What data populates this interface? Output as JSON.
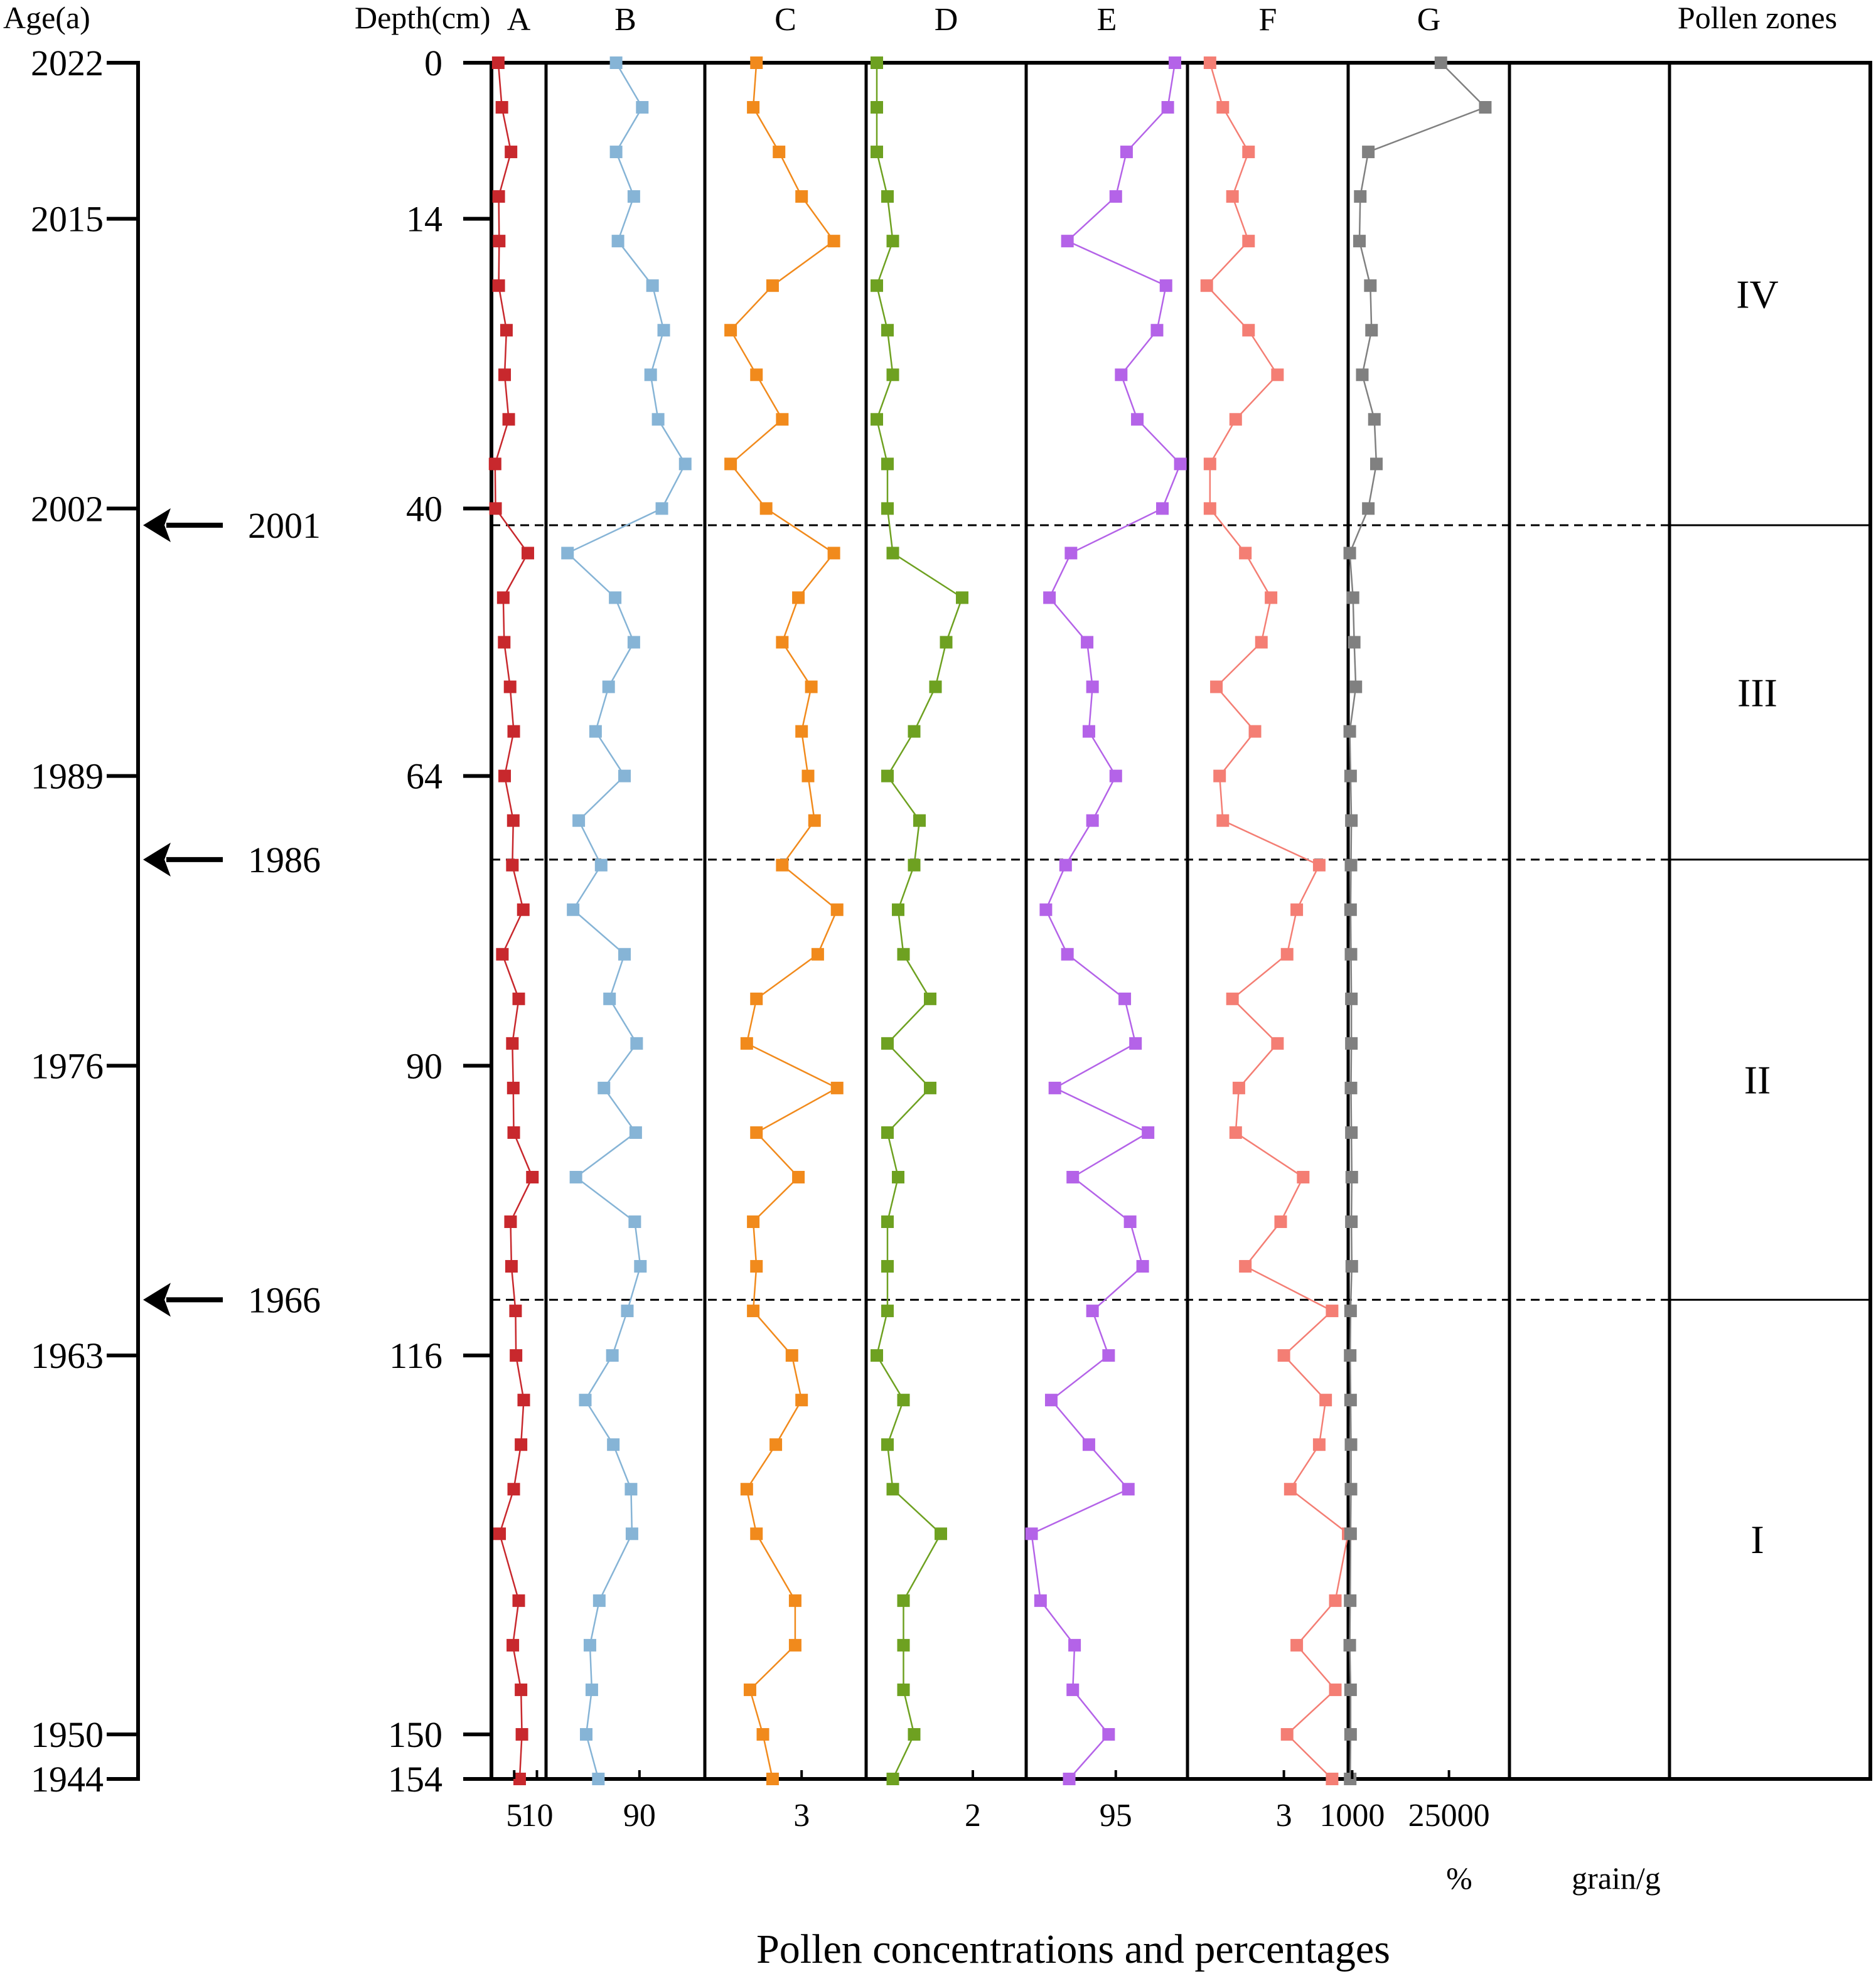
{
  "chart_data": {
    "type": "line",
    "title": "",
    "xlabel": "Pollen concentrations and percentages",
    "ylabel": "Depth(cm)",
    "age_axis_label": "Age(a)",
    "zones_label": "Pollen zones",
    "unit_percent": "%",
    "unit_conc": "grain/g",
    "ylim": [
      0,
      154
    ],
    "depth_ticks": [
      {
        "depth": 0,
        "label": "0"
      },
      {
        "depth": 14,
        "label": "14"
      },
      {
        "depth": 40,
        "label": "40"
      },
      {
        "depth": 64,
        "label": "64"
      },
      {
        "depth": 90,
        "label": "90"
      },
      {
        "depth": 116,
        "label": "116"
      },
      {
        "depth": 150,
        "label": "150"
      },
      {
        "depth": 154,
        "label": "154"
      }
    ],
    "age_ticks": [
      {
        "depth": 0,
        "label": "2022"
      },
      {
        "depth": 14,
        "label": "2015"
      },
      {
        "depth": 40,
        "label": "2002"
      },
      {
        "depth": 64,
        "label": "1989"
      },
      {
        "depth": 90,
        "label": "1976"
      },
      {
        "depth": 116,
        "label": "1963"
      },
      {
        "depth": 150,
        "label": "1950"
      },
      {
        "depth": 154,
        "label": "1944"
      }
    ],
    "events": [
      {
        "depth": 41.5,
        "label": "2001"
      },
      {
        "depth": 71.5,
        "label": "1986"
      },
      {
        "depth": 111,
        "label": "1966"
      }
    ],
    "zones": [
      {
        "label": "IV",
        "top": 0,
        "bottom": 41.5
      },
      {
        "label": "III",
        "top": 41.5,
        "bottom": 71.5
      },
      {
        "label": "II",
        "top": 71.5,
        "bottom": 111
      },
      {
        "label": "I",
        "top": 111,
        "bottom": 154
      }
    ],
    "depths": [
      0,
      4,
      8,
      12,
      16,
      20,
      24,
      28,
      32,
      36,
      40,
      44,
      48,
      52,
      56,
      60,
      64,
      68,
      72,
      76,
      80,
      84,
      88,
      92,
      96,
      100,
      104,
      108,
      112,
      116,
      120,
      124,
      128,
      132,
      138,
      142,
      146,
      150,
      154
    ],
    "series": [
      {
        "name": "A",
        "color": "#c8282d",
        "xlim": [
          0,
          12
        ],
        "ticks": [
          {
            "v": 5,
            "label": "5"
          },
          {
            "v": 10,
            "label": "10"
          }
        ],
        "values": [
          1.5,
          2.3,
          4.3,
          1.6,
          1.7,
          1.6,
          3.3,
          2.9,
          3.8,
          0.8,
          0.9,
          8.0,
          2.6,
          2.8,
          4.1,
          4.9,
          2.9,
          4.8,
          4.6,
          7.0,
          2.4,
          6.0,
          4.6,
          4.8,
          4.9,
          9.0,
          4.2,
          4.4,
          5.3,
          5.4,
          7.1,
          6.5,
          4.9,
          1.8,
          6.0,
          4.7,
          6.5,
          6.7,
          6.2
        ]
      },
      {
        "name": "B",
        "color": "#86b4d6",
        "xlim": [
          80,
          97
        ],
        "ticks": [
          {
            "v": 90,
            "label": "90"
          }
        ],
        "values": [
          87.5,
          90.3,
          87.5,
          89.4,
          87.7,
          91.4,
          92.6,
          91.2,
          92.0,
          94.9,
          92.4,
          82.3,
          87.4,
          89.4,
          86.7,
          85.3,
          88.4,
          83.5,
          85.9,
          82.9,
          88.4,
          86.8,
          89.7,
          86.2,
          89.6,
          83.2,
          89.5,
          90.1,
          88.7,
          87.1,
          84.2,
          87.2,
          89.1,
          89.2,
          85.7,
          84.7,
          84.9,
          84.3,
          85.6
        ]
      },
      {
        "name": "C",
        "color": "#f18a1c",
        "xlim": [
          0,
          5
        ],
        "ticks": [
          {
            "v": 3,
            "label": "3"
          }
        ],
        "values": [
          1.6,
          1.5,
          2.3,
          3.0,
          4.0,
          2.1,
          0.8,
          1.6,
          2.4,
          0.8,
          1.9,
          4.0,
          2.9,
          2.4,
          3.3,
          3.0,
          3.2,
          3.4,
          2.4,
          4.1,
          3.5,
          1.6,
          1.3,
          4.1,
          1.6,
          2.9,
          1.5,
          1.6,
          1.5,
          2.7,
          3.0,
          2.2,
          1.3,
          1.6,
          2.8,
          2.8,
          1.4,
          1.8,
          2.1
        ]
      },
      {
        "name": "D",
        "color": "#6ea121",
        "xlim": [
          0,
          3
        ],
        "ticks": [
          {
            "v": 2,
            "label": "2"
          }
        ],
        "values": [
          0.2,
          0.2,
          0.2,
          0.4,
          0.5,
          0.2,
          0.4,
          0.5,
          0.2,
          0.4,
          0.4,
          0.5,
          1.8,
          1.5,
          1.3,
          0.9,
          0.4,
          1.0,
          0.9,
          0.6,
          0.7,
          1.2,
          0.4,
          1.2,
          0.4,
          0.6,
          0.4,
          0.4,
          0.4,
          0.2,
          0.7,
          0.4,
          0.5,
          1.4,
          0.7,
          0.7,
          0.7,
          0.9,
          0.5
        ]
      },
      {
        "name": "E",
        "color": "#b463e8",
        "xlim": [
          90,
          99
        ],
        "ticks": [
          {
            "v": 95,
            "label": "95"
          }
        ],
        "values": [
          98.3,
          97.9,
          95.6,
          95.0,
          92.3,
          97.8,
          97.3,
          95.3,
          96.2,
          98.6,
          97.6,
          92.5,
          91.3,
          93.4,
          93.7,
          93.5,
          95.0,
          93.7,
          92.2,
          91.1,
          92.3,
          95.5,
          96.1,
          91.6,
          96.8,
          92.6,
          95.8,
          96.5,
          93.7,
          94.6,
          91.4,
          93.5,
          95.7,
          90.3,
          90.8,
          92.7,
          92.6,
          94.6,
          92.4
        ]
      },
      {
        "name": "F",
        "color": "#f47e74",
        "xlim": [
          0,
          5
        ],
        "ticks": [
          {
            "v": 3,
            "label": "3"
          }
        ],
        "values": [
          0.7,
          1.1,
          1.9,
          1.4,
          1.9,
          0.6,
          1.9,
          2.8,
          1.5,
          0.7,
          0.7,
          1.8,
          2.6,
          2.3,
          0.9,
          2.1,
          1.0,
          1.1,
          4.1,
          3.4,
          3.1,
          1.4,
          2.8,
          1.6,
          1.5,
          3.6,
          2.9,
          1.8,
          4.5,
          3.0,
          4.3,
          4.1,
          3.2,
          5.0,
          4.6,
          3.4,
          4.6,
          3.1,
          4.5
        ]
      },
      {
        "name": "G",
        "color": "#808080",
        "xlim": [
          0,
          40000
        ],
        "ticks": [
          {
            "v": 1000,
            "label": "1000"
          },
          {
            "v": 25000,
            "label": "25000"
          }
        ],
        "values": [
          23000,
          34000,
          5000,
          3000,
          2800,
          5500,
          5800,
          3500,
          6500,
          7000,
          5000,
          400,
          1200,
          1500,
          1900,
          400,
          600,
          800,
          700,
          600,
          700,
          800,
          800,
          700,
          800,
          900,
          800,
          900,
          600,
          500,
          600,
          700,
          700,
          600,
          500,
          400,
          600,
          600,
          500
        ]
      }
    ]
  }
}
